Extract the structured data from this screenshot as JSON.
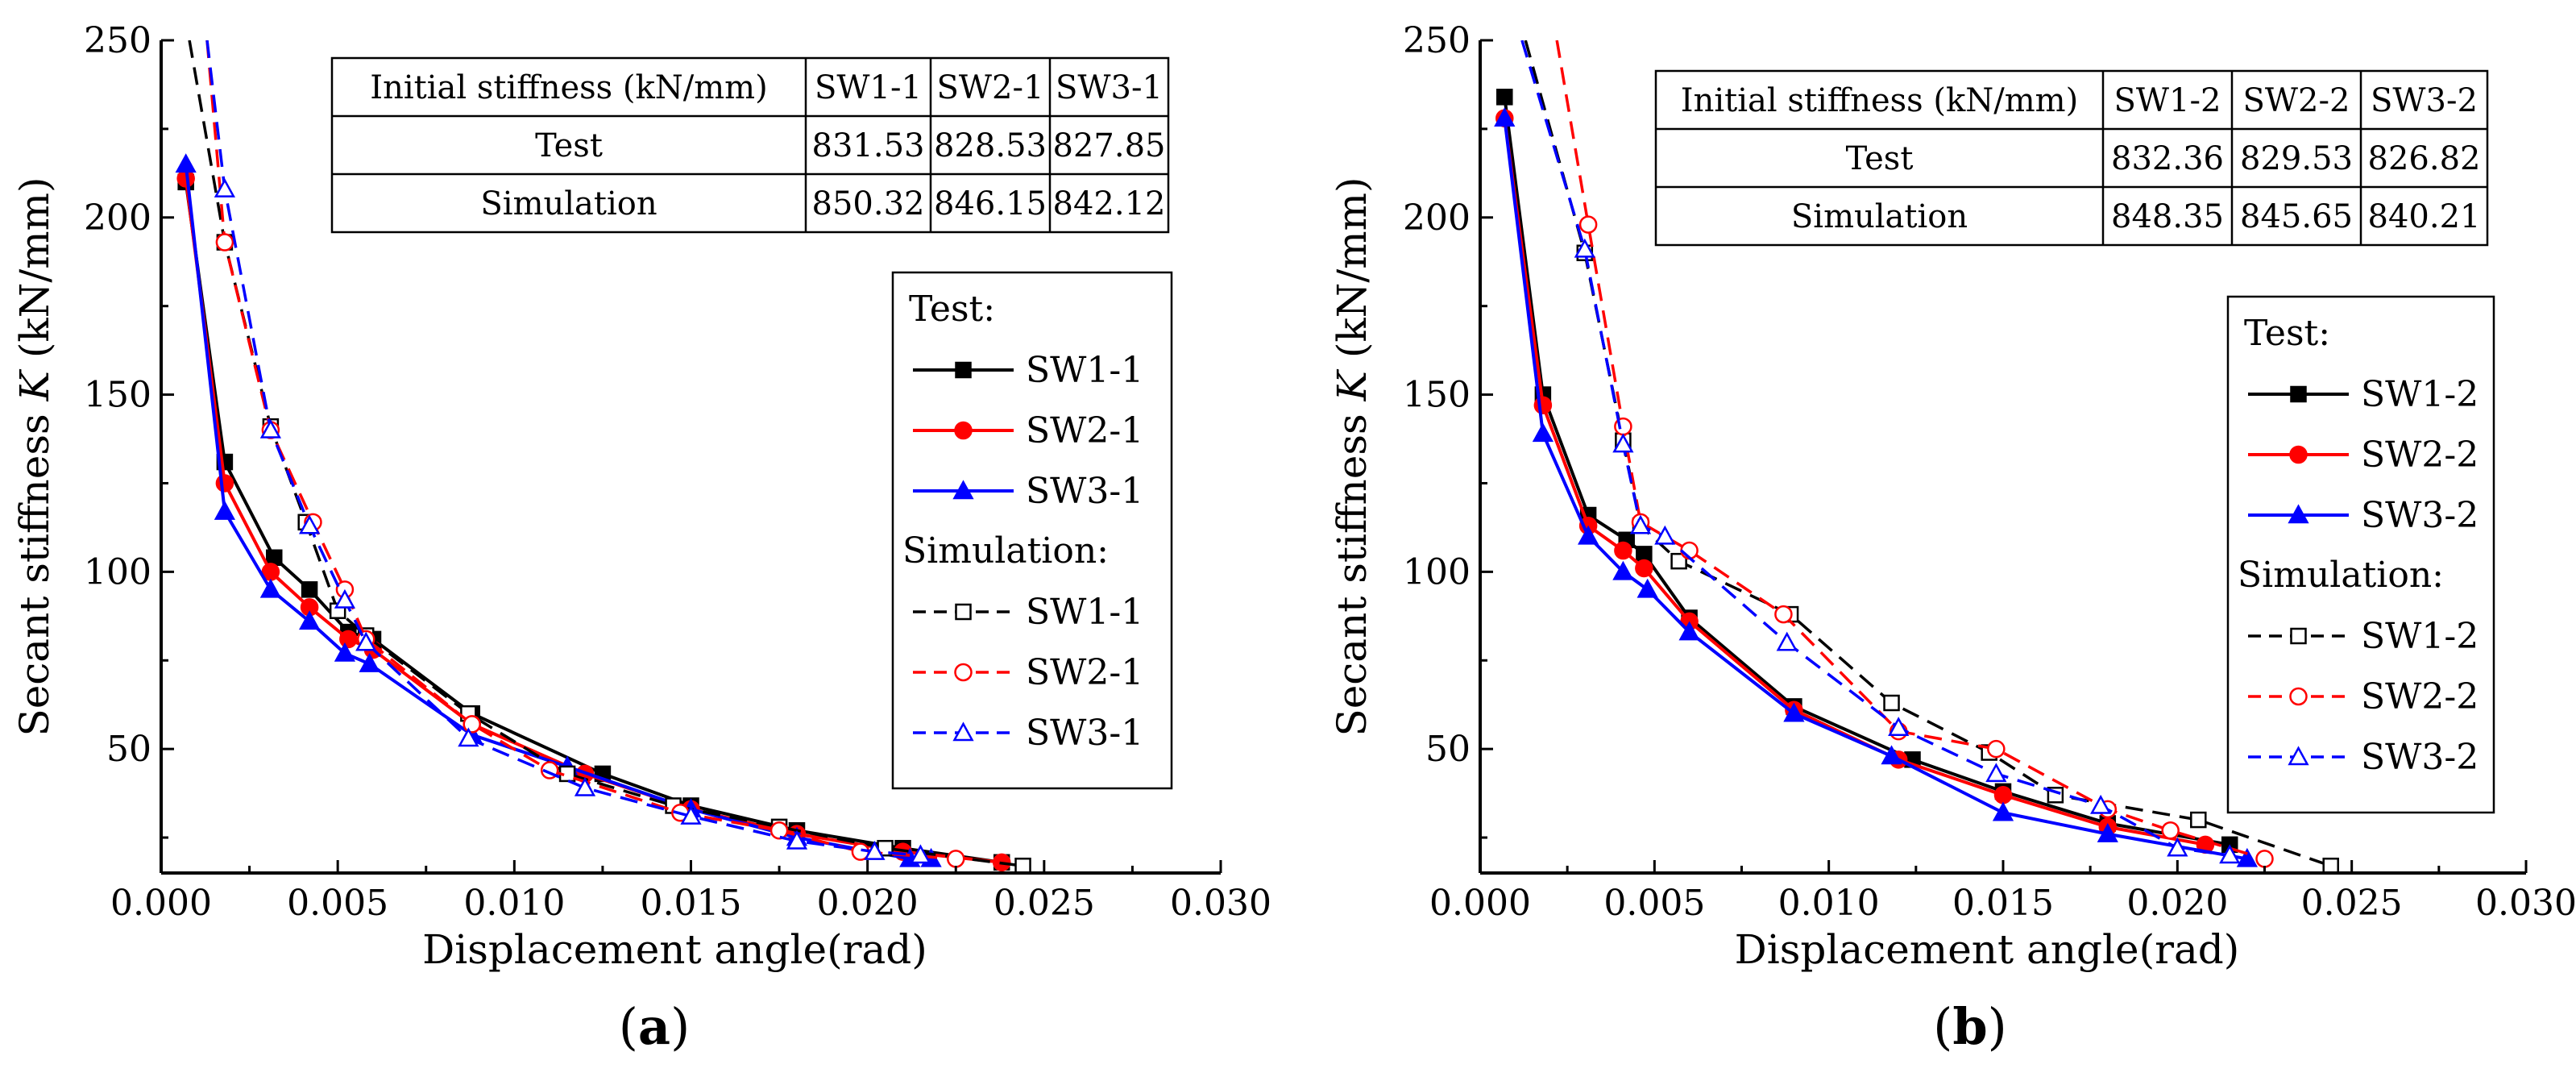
{
  "chart_data": [
    {
      "type": "line",
      "panel_label": "(a)",
      "xlabel": "Displacement angle(rad)",
      "ylabel_prefix": "Secant stiffness ",
      "ylabel_var": "K",
      "ylabel_suffix": " (kN/mm)",
      "xlim": [
        0,
        0.03
      ],
      "ylim": [
        15,
        250
      ],
      "xticks": [
        "0.000",
        "0.005",
        "0.010",
        "0.015",
        "0.020",
        "0.025",
        "0.030"
      ],
      "yticks": [
        "50",
        "100",
        "150",
        "200",
        "250"
      ],
      "legend_group_test": "Test:",
      "legend_group_sim": "Simulation:",
      "table": {
        "header": [
          "Initial stiffness (kN/mm)",
          "SW1-1",
          "SW2-1",
          "SW3-1"
        ],
        "rows": [
          [
            "Test",
            "831.53",
            "828.53",
            "827.85"
          ],
          [
            "Simulation",
            "850.32",
            "846.15",
            "842.12"
          ]
        ]
      },
      "series": [
        {
          "name": "SW1-1",
          "group": "test",
          "color": "#000000",
          "marker": "square",
          "filled": true,
          "dashed": false,
          "x": [
            0.0007,
            0.0018,
            0.0032,
            0.0042,
            0.0053,
            0.006,
            0.0088,
            0.0125,
            0.015,
            0.018,
            0.021,
            0.0238
          ],
          "y": [
            210,
            131,
            104,
            95,
            83,
            81,
            60,
            43,
            34,
            27,
            22,
            18
          ]
        },
        {
          "name": "SW2-1",
          "group": "test",
          "color": "#ff0000",
          "marker": "circle",
          "filled": true,
          "dashed": false,
          "x": [
            0.0007,
            0.0018,
            0.0031,
            0.0042,
            0.0053,
            0.006,
            0.0088,
            0.012,
            0.015,
            0.018,
            0.021,
            0.0238
          ],
          "y": [
            211,
            125,
            100,
            90,
            81,
            78,
            57,
            43,
            33,
            26,
            21,
            18
          ]
        },
        {
          "name": "SW3-1",
          "group": "test",
          "color": "#0000ff",
          "marker": "triangle",
          "filled": true,
          "dashed": false,
          "x": [
            0.0007,
            0.0018,
            0.0031,
            0.0042,
            0.0052,
            0.0059,
            0.0088,
            0.0115,
            0.015,
            0.018,
            0.0212,
            0.0218
          ],
          "y": [
            215,
            117,
            95,
            86,
            77,
            74,
            54,
            45,
            33,
            25,
            19,
            19
          ]
        },
        {
          "name": "SW1-1",
          "group": "sim",
          "color": "#000000",
          "marker": "square",
          "filled": false,
          "dashed": true,
          "x": [
            0.0008,
            0.0018,
            0.0031,
            0.0041,
            0.005,
            0.0058,
            0.0087,
            0.0115,
            0.0145,
            0.0175,
            0.0205,
            0.0244
          ],
          "y": [
            250,
            193,
            141,
            114,
            89,
            82,
            60,
            43,
            34,
            28,
            22,
            17
          ]
        },
        {
          "name": "SW2-1",
          "group": "sim",
          "color": "#ff0000",
          "marker": "circle",
          "filled": false,
          "dashed": true,
          "x": [
            0.0013,
            0.0018,
            0.0031,
            0.0043,
            0.0052,
            0.0058,
            0.0088,
            0.011,
            0.0147,
            0.0175,
            0.0198,
            0.0225
          ],
          "y": [
            250,
            193,
            140,
            114,
            95,
            81,
            57,
            44,
            32,
            27,
            21,
            19
          ]
        },
        {
          "name": "SW3-1",
          "group": "sim",
          "color": "#0000ff",
          "marker": "triangle",
          "filled": false,
          "dashed": true,
          "x": [
            0.0013,
            0.0018,
            0.0031,
            0.0042,
            0.0052,
            0.0058,
            0.0087,
            0.012,
            0.015,
            0.018,
            0.0202,
            0.0215
          ],
          "y": [
            250,
            208,
            140,
            113,
            92,
            80,
            53,
            39,
            31,
            24,
            21,
            20
          ]
        }
      ]
    },
    {
      "type": "line",
      "panel_label": "(b)",
      "xlabel": "Displacement angle(rad)",
      "ylabel_prefix": "Secant stiffness ",
      "ylabel_var": "K",
      "ylabel_suffix": " (kN/mm)",
      "xlim": [
        0,
        0.03
      ],
      "ylim": [
        15,
        250
      ],
      "xticks": [
        "0.000",
        "0.005",
        "0.010",
        "0.015",
        "0.020",
        "0.025",
        "0.030"
      ],
      "yticks": [
        "50",
        "100",
        "150",
        "200",
        "250"
      ],
      "legend_group_test": "Test:",
      "legend_group_sim": "Simulation:",
      "table": {
        "header": [
          "Initial stiffness (kN/mm)",
          "SW1-2",
          "SW2-2",
          "SW3-2"
        ],
        "rows": [
          [
            "Test",
            "832.36",
            "829.53",
            "826.82"
          ],
          [
            "Simulation",
            "848.35",
            "845.65",
            "840.21"
          ]
        ]
      },
      "series": [
        {
          "name": "SW1-2",
          "group": "test",
          "color": "#000000",
          "marker": "square",
          "filled": true,
          "dashed": false,
          "x": [
            0.0007,
            0.0018,
            0.0031,
            0.0042,
            0.0047,
            0.006,
            0.009,
            0.0124,
            0.015,
            0.018,
            0.0215
          ],
          "y": [
            234,
            150,
            116,
            109,
            105,
            87,
            62,
            47,
            38,
            29,
            23
          ]
        },
        {
          "name": "SW2-2",
          "group": "test",
          "color": "#ff0000",
          "marker": "circle",
          "filled": true,
          "dashed": false,
          "x": [
            0.0007,
            0.0018,
            0.0031,
            0.0041,
            0.0047,
            0.006,
            0.009,
            0.012,
            0.015,
            0.018,
            0.0208
          ],
          "y": [
            228,
            147,
            113,
            106,
            101,
            86,
            61,
            47,
            37,
            28,
            23
          ]
        },
        {
          "name": "SW3-2",
          "group": "test",
          "color": "#0000ff",
          "marker": "triangle",
          "filled": true,
          "dashed": false,
          "x": [
            0.0007,
            0.0018,
            0.0031,
            0.0041,
            0.0048,
            0.006,
            0.009,
            0.0118,
            0.015,
            0.018,
            0.022
          ],
          "y": [
            228,
            139,
            110,
            100,
            95,
            83,
            60,
            48,
            32,
            26,
            19
          ]
        },
        {
          "name": "SW1-2",
          "group": "sim",
          "color": "#000000",
          "marker": "square",
          "filled": false,
          "dashed": true,
          "x": [
            0.0013,
            0.003,
            0.0041,
            0.0046,
            0.0057,
            0.0089,
            0.0118,
            0.0146,
            0.0165,
            0.0206,
            0.0244
          ],
          "y": [
            250,
            190,
            137,
            113,
            103,
            88,
            63,
            49,
            37,
            30,
            17
          ]
        },
        {
          "name": "SW2-2",
          "group": "sim",
          "color": "#ff0000",
          "marker": "circle",
          "filled": false,
          "dashed": true,
          "x": [
            0.0022,
            0.0031,
            0.0041,
            0.0046,
            0.006,
            0.0087,
            0.012,
            0.0148,
            0.018,
            0.0198,
            0.0225
          ],
          "y": [
            250,
            198,
            141,
            114,
            106,
            88,
            55,
            50,
            33,
            27,
            19
          ]
        },
        {
          "name": "SW3-2",
          "group": "sim",
          "color": "#0000ff",
          "marker": "triangle",
          "filled": false,
          "dashed": true,
          "x": [
            0.0012,
            0.003,
            0.0041,
            0.0046,
            0.0053,
            0.0088,
            0.012,
            0.0148,
            0.0178,
            0.02,
            0.0215
          ],
          "y": [
            250,
            191,
            136,
            113,
            110,
            80,
            56,
            43,
            34,
            22,
            20
          ]
        }
      ]
    }
  ]
}
